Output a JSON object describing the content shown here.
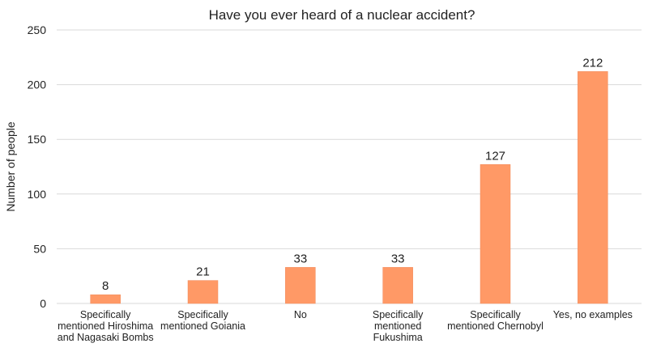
{
  "chart_data": {
    "type": "bar",
    "title": "Have you ever heard of a nuclear accident?",
    "xlabel": "",
    "ylabel": "Number of people",
    "ylim": [
      0,
      250
    ],
    "yticks": [
      0,
      50,
      100,
      150,
      200,
      250
    ],
    "grid": true,
    "categories": [
      [
        "Specifically",
        "mentioned Hiroshima",
        "and Nagasaki Bombs"
      ],
      [
        "Specifically",
        "mentioned Goiania"
      ],
      [
        "No"
      ],
      [
        "Specifically",
        "mentioned",
        "Fukushima"
      ],
      [
        "Specifically",
        "mentioned Chernobyl"
      ],
      [
        "Yes, no examples"
      ]
    ],
    "values": [
      8,
      21,
      33,
      33,
      127,
      212
    ],
    "data_labels": [
      "8",
      "21",
      "33",
      "33",
      "127",
      "212"
    ],
    "colors": {
      "bar": "#ff9966",
      "bar_stroke": "#f08a5a",
      "grid": "#d9d9d9",
      "text": "#222222"
    }
  }
}
